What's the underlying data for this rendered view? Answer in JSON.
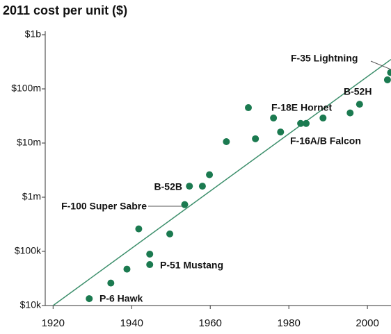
{
  "chart_data": {
    "type": "scatter",
    "title": "2011 cost per unit ($)",
    "log_y": true,
    "color": "#1b7a50",
    "trend_color": "#3d8f6c",
    "xlim": [
      1918,
      2006
    ],
    "ylim": [
      10000,
      1000000000
    ],
    "xticks": [
      1920,
      1940,
      1960,
      1980,
      2000
    ],
    "yticks": [
      {
        "value": 10000,
        "label": "$10k"
      },
      {
        "value": 100000,
        "label": "$100k"
      },
      {
        "value": 1000000,
        "label": "$1m"
      },
      {
        "value": 10000000,
        "label": "$10m"
      },
      {
        "value": 100000000,
        "label": "$100m"
      },
      {
        "value": 1000000000,
        "label": "$1b"
      }
    ],
    "x": [
      1929.2,
      1934.7,
      1938.8,
      1941.8,
      1944.6,
      1944.6,
      1949.7,
      1953.5,
      1954.7,
      1958,
      1959.8,
      1964.1,
      1969.7,
      1971.5,
      1976.1,
      1977.9,
      1983,
      1984.4,
      1988.7,
      1995.6,
      1998,
      2005.1,
      2005.9
    ],
    "values": [
      13400,
      26000,
      47000,
      260000,
      89000,
      57000,
      210000,
      730000,
      1600000,
      1600000,
      2600000,
      10600000,
      45000000,
      12000000,
      29000000,
      16000000,
      23000000,
      23000000,
      29000000,
      36000000,
      52000000,
      147000000,
      200000000
    ],
    "trend": {
      "x": [
        1920,
        2006
      ],
      "values": [
        10000,
        350000000
      ]
    },
    "annotations": [
      "P-6 Hawk",
      "P-51 Mustang",
      "F-100 Super Sabre",
      "B-52B",
      "F-18E Hornet",
      "F-16A/B Falcon",
      "B-52H",
      "F-35 Lightning"
    ]
  }
}
